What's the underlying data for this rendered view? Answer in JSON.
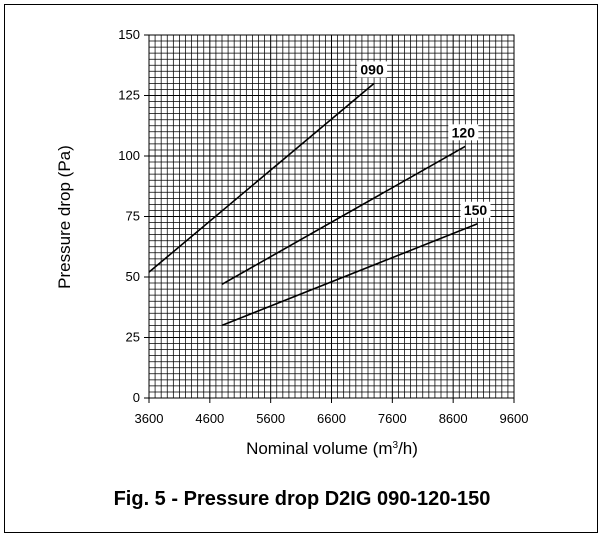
{
  "caption": "Fig. 5 - Pressure drop D2IG 090-120-150",
  "chart_data": {
    "type": "line",
    "title": "Fig. 5 - Pressure drop D2IG 090-120-150",
    "xlabel_prefix": "Nominal volume (m",
    "xlabel_sup": "3",
    "xlabel_suffix": "/h)",
    "ylabel": "Pressure drop (Pa)",
    "xlim": [
      3600,
      9600
    ],
    "ylim": [
      0,
      150
    ],
    "x_ticks": [
      3600,
      4600,
      5600,
      6600,
      7600,
      8600,
      9600
    ],
    "y_ticks": [
      0,
      25,
      50,
      75,
      100,
      125,
      150
    ],
    "grid": true,
    "series": [
      {
        "name": "090",
        "x": [
          3600,
          7300
        ],
        "y": [
          52,
          130
        ]
      },
      {
        "name": "120",
        "x": [
          4800,
          8800
        ],
        "y": [
          47,
          104
        ]
      },
      {
        "name": "150",
        "x": [
          4800,
          9000
        ],
        "y": [
          30,
          72
        ]
      }
    ]
  }
}
